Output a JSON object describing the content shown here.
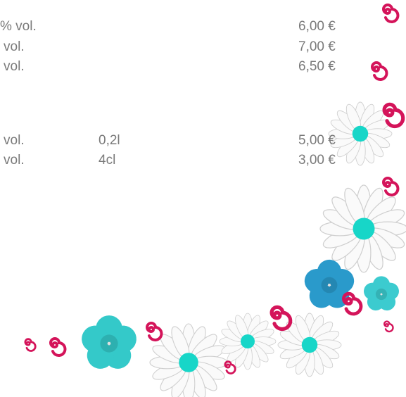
{
  "sections": [
    {
      "rows": [
        {
          "label": "% vol.",
          "price": "6,00 €"
        },
        {
          "label": "vol.",
          "price": "7,00 €"
        },
        {
          "label": "vol.",
          "price": "6,50 €"
        }
      ]
    },
    {
      "rows": [
        {
          "label": "vol.",
          "amount": "0,2l",
          "price": "5,00 €"
        },
        {
          "label": "vol.",
          "amount": "4cl",
          "price": "3,00 €"
        }
      ]
    }
  ]
}
